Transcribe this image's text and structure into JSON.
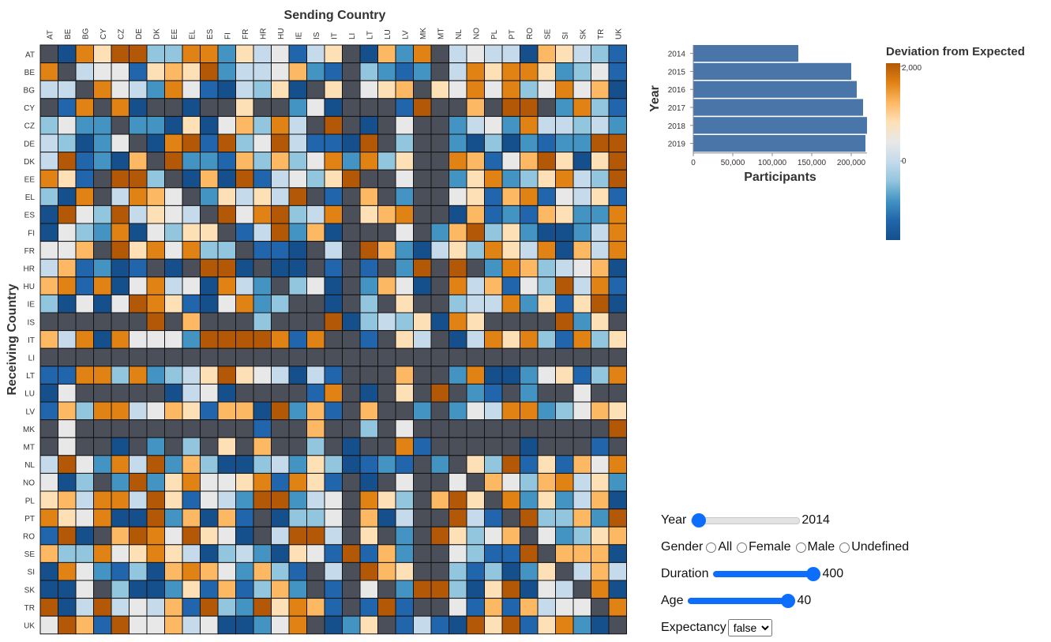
{
  "heatmap": {
    "title_top": "Sending Country",
    "title_left": "Receiving Country",
    "countries": [
      "AT",
      "BE",
      "BG",
      "CY",
      "CZ",
      "DE",
      "DK",
      "EE",
      "EL",
      "ES",
      "FI",
      "FR",
      "HR",
      "HU",
      "IE",
      "IS",
      "IT",
      "LI",
      "LT",
      "LU",
      "LV",
      "MK",
      "MT",
      "NL",
      "NO",
      "PL",
      "PT",
      "RO",
      "SE",
      "SI",
      "SK",
      "TR",
      "UK"
    ],
    "missing_color": "#4a4f5a",
    "stroke_color": "#111111"
  },
  "legend": {
    "title": "Deviation from Expected",
    "max_label": "2,000",
    "mid_label": "0",
    "colors": [
      "#b35806",
      "#e08214",
      "#fdb863",
      "#fee0b6",
      "#e8e8e8",
      "#c5dbec",
      "#92c5de",
      "#4393c3",
      "#2166ac",
      "#154f8c"
    ]
  },
  "chart_data": {
    "type": "bar",
    "orientation": "horizontal",
    "categories": [
      "2014",
      "2015",
      "2016",
      "2017",
      "2018",
      "2019"
    ],
    "values": [
      133000,
      200000,
      207000,
      215000,
      220000,
      218000
    ],
    "ylabel": "Year",
    "xlabel": "Participants",
    "xticks": [
      "0",
      "50,000",
      "100,000",
      "150,000",
      "200,000"
    ],
    "xlim": [
      0,
      220000
    ],
    "bar_color": "#4a75a8"
  },
  "controls": {
    "year_label": "Year",
    "year_value": "2014",
    "gender_label": "Gender",
    "gender_options": [
      "All",
      "Female",
      "Male",
      "Undefined"
    ],
    "duration_label": "Duration",
    "duration_value": "400",
    "age_label": "Age",
    "age_value": "40",
    "expectancy_label": "Expectancy",
    "expectancy_value": "false"
  }
}
